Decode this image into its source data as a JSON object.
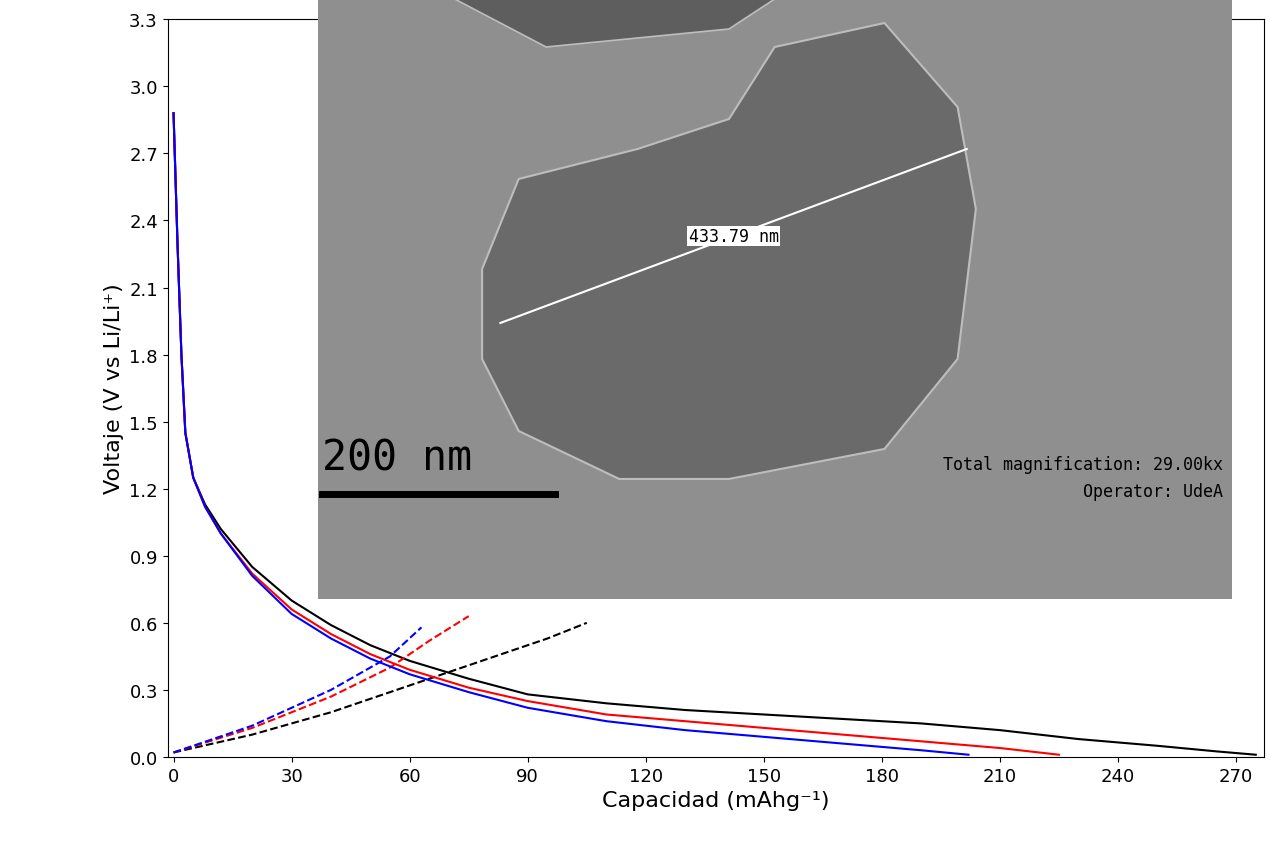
{
  "chart_data": {
    "type": "line",
    "x_label": "Capacidad (mAhg⁻¹)",
    "y_label": "Voltaje (V vs Li/Li⁺)",
    "xlim": [
      -1.5,
      277
    ],
    "xticks": [
      0,
      30,
      60,
      90,
      120,
      150,
      180,
      210,
      240,
      270
    ],
    "ylim": [
      0.0,
      3.3
    ],
    "yticks": [
      0.0,
      0.3,
      0.6,
      0.9,
      1.2,
      1.5,
      1.8,
      2.1,
      2.4,
      2.7,
      3.0,
      3.3
    ],
    "grid": false,
    "series": [
      {
        "color": "#000000",
        "line_style": "dashed",
        "x": [
          0,
          20,
          40,
          60,
          80,
          95,
          105
        ],
        "values": [
          0.02,
          0.1,
          0.2,
          0.32,
          0.44,
          0.53,
          0.6
        ]
      },
      {
        "color": "#000000",
        "line_style": "solid",
        "x": [
          0,
          1,
          2,
          3,
          5,
          8,
          12,
          20,
          30,
          40,
          50,
          60,
          75,
          90,
          110,
          130,
          150,
          170,
          190,
          210,
          230,
          250,
          265,
          275
        ],
        "values": [
          2.88,
          2.3,
          1.8,
          1.45,
          1.25,
          1.13,
          1.02,
          0.85,
          0.7,
          0.59,
          0.5,
          0.43,
          0.35,
          0.28,
          0.24,
          0.21,
          0.19,
          0.17,
          0.15,
          0.12,
          0.08,
          0.05,
          0.025,
          0.01
        ]
      },
      {
        "color": "#ff0000",
        "line_style": "dashed",
        "x": [
          0,
          20,
          40,
          55,
          65,
          75
        ],
        "values": [
          0.02,
          0.13,
          0.27,
          0.4,
          0.52,
          0.63
        ]
      },
      {
        "color": "#ff0000",
        "line_style": "solid",
        "x": [
          0,
          1,
          2,
          3,
          5,
          8,
          12,
          20,
          30,
          40,
          50,
          60,
          75,
          90,
          110,
          130,
          150,
          170,
          190,
          210,
          225
        ],
        "values": [
          2.88,
          2.3,
          1.8,
          1.45,
          1.25,
          1.12,
          1.0,
          0.82,
          0.66,
          0.55,
          0.46,
          0.39,
          0.31,
          0.25,
          0.19,
          0.16,
          0.13,
          0.1,
          0.07,
          0.04,
          0.01
        ]
      },
      {
        "color": "#0000ff",
        "line_style": "dashed",
        "x": [
          0,
          20,
          40,
          55,
          63
        ],
        "values": [
          0.02,
          0.14,
          0.3,
          0.45,
          0.58
        ]
      },
      {
        "color": "#0000ff",
        "line_style": "solid",
        "x": [
          0,
          1,
          2,
          3,
          5,
          8,
          12,
          20,
          30,
          40,
          50,
          60,
          75,
          90,
          110,
          130,
          150,
          170,
          190,
          202
        ],
        "values": [
          2.88,
          2.3,
          1.8,
          1.45,
          1.25,
          1.12,
          1.0,
          0.81,
          0.64,
          0.53,
          0.44,
          0.37,
          0.29,
          0.22,
          0.16,
          0.12,
          0.09,
          0.06,
          0.03,
          0.01
        ]
      }
    ]
  },
  "inset_image": {
    "measurement": "433.79 nm",
    "scale_bar": "200 nm",
    "magnification": "Total magnification: 29.00kx",
    "operator": "Operator: UdeA"
  }
}
